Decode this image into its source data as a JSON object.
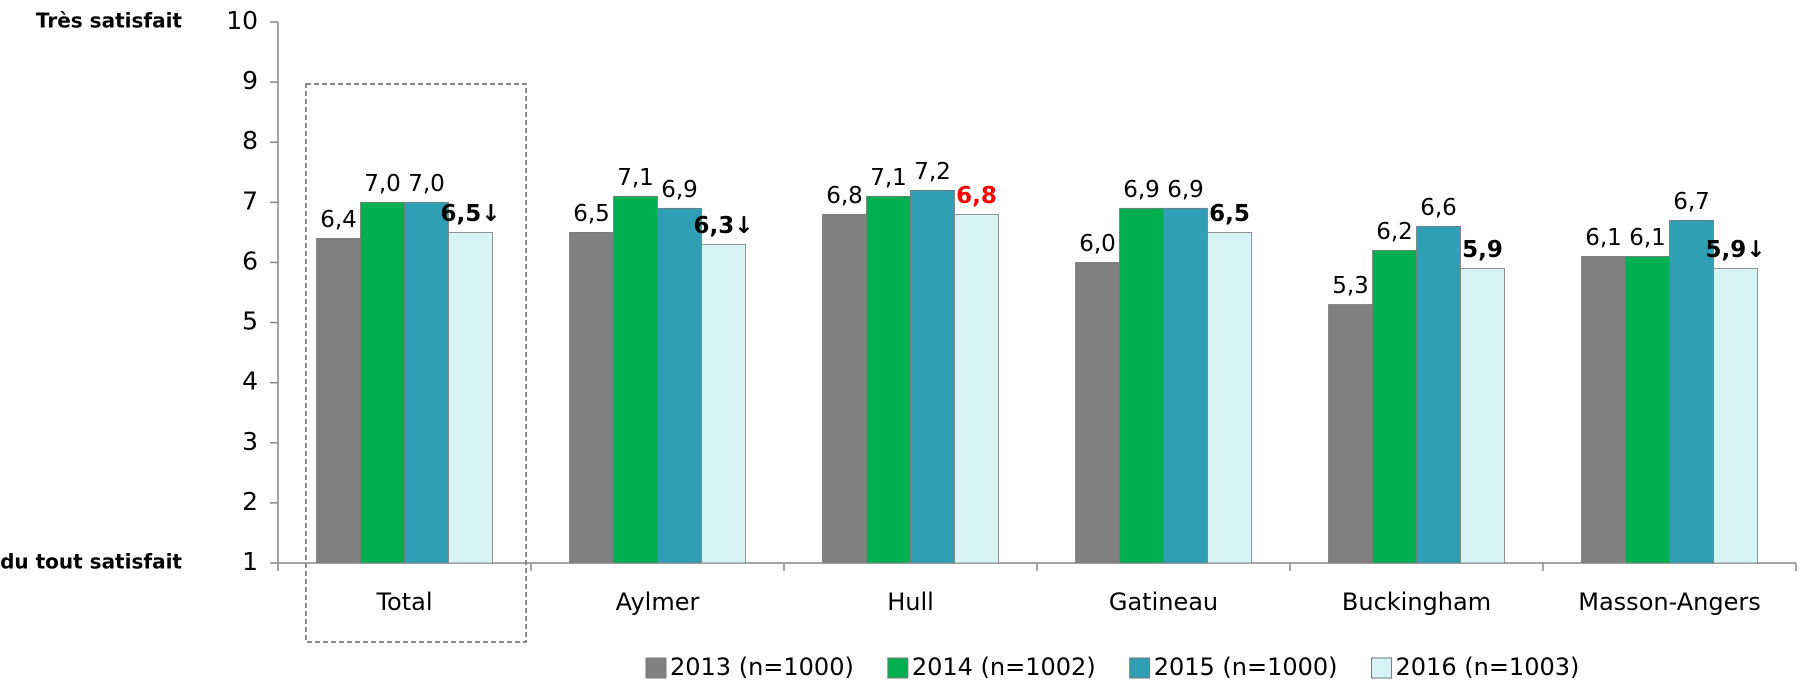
{
  "chart_data": {
    "type": "bar",
    "y_axis_annotations": [
      {
        "value": 10,
        "label": "Très satisfait"
      },
      {
        "value": 1,
        "label": "du tout satisfait"
      }
    ],
    "categories": [
      "Total",
      "Aylmer",
      "Hull",
      "Gatineau",
      "Buckingham",
      "Masson-Angers"
    ],
    "series": [
      {
        "name": "2013 (n=1000)",
        "color": "#808080",
        "values": [
          6.4,
          6.5,
          6.8,
          6.0,
          5.3,
          6.1
        ],
        "value_labels": [
          "6,4",
          "6,5",
          "6,8",
          "6,0",
          "5,3",
          "6,1"
        ]
      },
      {
        "name": "2014 (n=1002)",
        "color": "#00b050",
        "values": [
          7.0,
          7.1,
          7.1,
          6.9,
          6.2,
          6.1
        ],
        "value_labels": [
          "7,0",
          "7,1",
          "7,1",
          "6,9",
          "6,2",
          "6,1"
        ]
      },
      {
        "name": "2015 (n=1000)",
        "color": "#2e9fb5",
        "values": [
          7.0,
          6.9,
          7.2,
          6.9,
          6.6,
          6.7
        ],
        "value_labels": [
          "7,0",
          "6,9",
          "7,2",
          "6,9",
          "6,6",
          "6,7"
        ]
      },
      {
        "name": "2016 (n=1003)",
        "color": "#d6f4f6",
        "values": [
          6.5,
          6.3,
          6.8,
          6.5,
          5.9,
          5.9
        ],
        "value_labels": [
          "6,5↓",
          "6,3↓",
          "6,8",
          "6,5",
          "5,9",
          "5,9↓"
        ],
        "value_label_weight": "bold",
        "value_label_colors": [
          "#000000",
          "#000000",
          "#ff0000",
          "#000000",
          "#000000",
          "#000000"
        ]
      }
    ],
    "ylim": [
      1,
      10
    ],
    "yticks": [
      1,
      2,
      3,
      4,
      5,
      6,
      7,
      8,
      9,
      10
    ],
    "grid": false,
    "legend_position": "bottom"
  }
}
